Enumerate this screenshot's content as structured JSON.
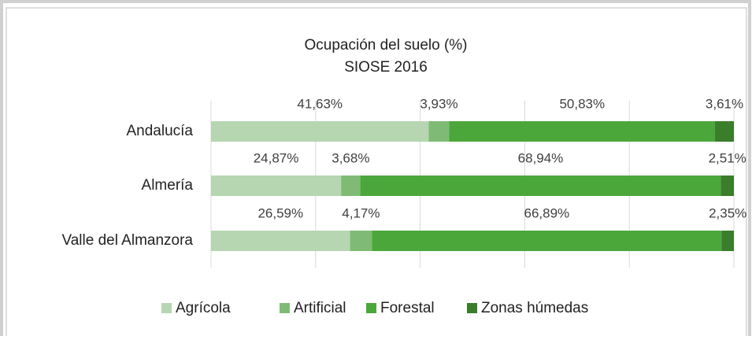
{
  "chart_data": {
    "type": "bar",
    "orientation": "horizontal",
    "stacked": true,
    "title": "Ocupación del suelo (%)",
    "subtitle": "SIOSE 2016",
    "categories": [
      "Andalucía",
      "Almería",
      "Valle del Almanzora"
    ],
    "series": [
      {
        "name": "Agrícola",
        "color": "#b5d6b1",
        "values": [
          41.63,
          24.87,
          26.59
        ],
        "value_labels": [
          "41,63%",
          "24,87%",
          "26,59%"
        ]
      },
      {
        "name": "Artificial",
        "color": "#7fbb75",
        "values": [
          3.93,
          3.68,
          4.17
        ],
        "value_labels": [
          "3,93%",
          "3,68%",
          "4,17%"
        ]
      },
      {
        "name": "Forestal",
        "color": "#4ca73b",
        "values": [
          50.83,
          68.94,
          66.89
        ],
        "value_labels": [
          "50,83%",
          "68,94%",
          "66,89%"
        ]
      },
      {
        "name": "Zonas húmedas",
        "color": "#3a7d2b",
        "values": [
          3.61,
          2.51,
          2.35
        ],
        "value_labels": [
          "3,61%",
          "2,51%",
          "2,35%"
        ]
      }
    ],
    "xlim": [
      0,
      100
    ],
    "xticks": [
      0,
      20,
      40,
      60,
      80,
      100
    ],
    "grid": true,
    "legend": "bottom"
  }
}
